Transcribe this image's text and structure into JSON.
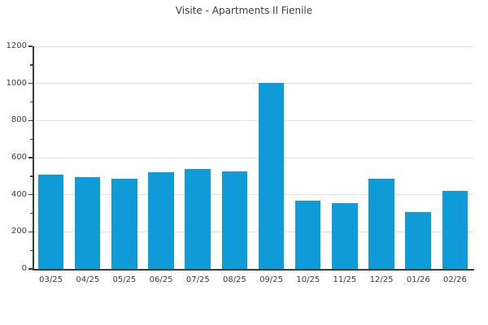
{
  "chart_data": {
    "type": "bar",
    "title": "Visite - Apartments Il Fienile",
    "categories": [
      "03/25",
      "04/25",
      "05/25",
      "06/25",
      "07/25",
      "08/25",
      "09/25",
      "10/25",
      "11/25",
      "12/25",
      "01/26",
      "02/26"
    ],
    "values": [
      510,
      495,
      485,
      520,
      540,
      525,
      1005,
      370,
      355,
      485,
      305,
      420
    ],
    "xlabel": "",
    "ylabel": "",
    "ylim": [
      0,
      1200
    ],
    "ytick_step": 200,
    "ytick_labels": [
      "0",
      "200",
      "400",
      "600",
      "800",
      "1000",
      "1200"
    ],
    "y_minor_tick_step": 100,
    "grid": "horizontal-major-only",
    "legend_position": "none",
    "bar_color": "#0f9bd7"
  },
  "colors": {
    "bar": "#0f9bd7",
    "axis": "#3c3c3c",
    "grid": "#e2e2e2",
    "title_text": "#3f3f3f",
    "tick_text": "#3b3b3b",
    "background": "#ffffff"
  }
}
